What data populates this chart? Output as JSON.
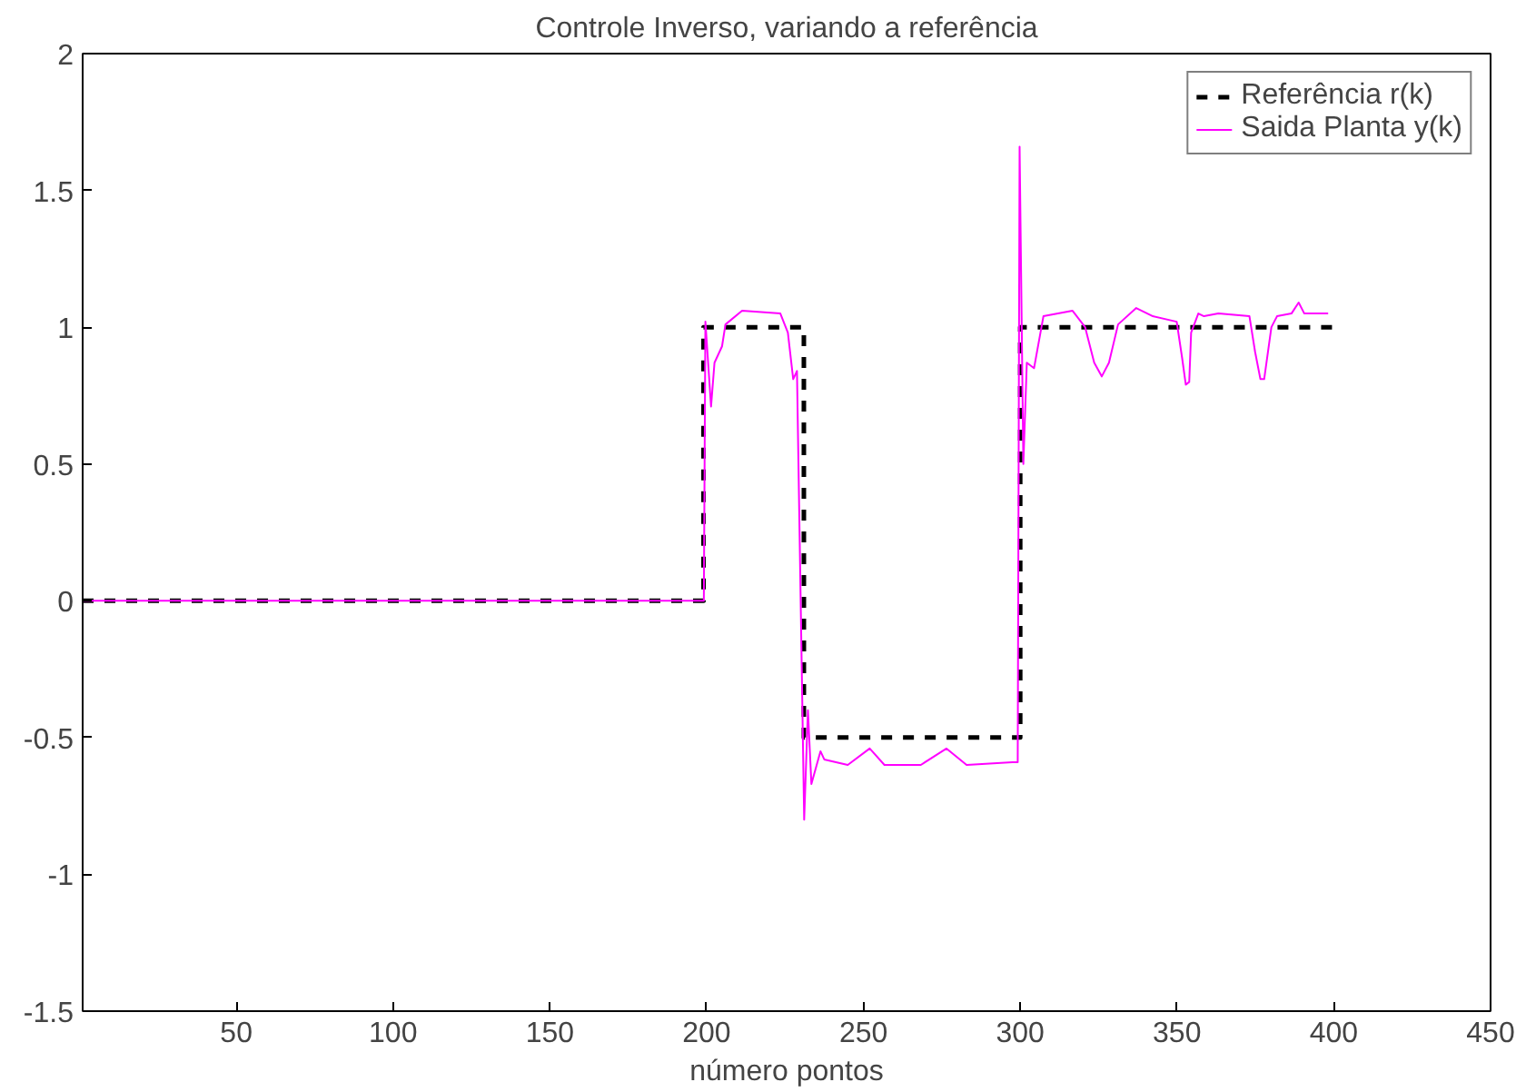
{
  "chart_data": {
    "type": "line",
    "title": "Controle Inverso, variando a referência",
    "xlabel": "número pontos",
    "xlim": [
      1,
      450
    ],
    "ylim": [
      -1.5,
      2
    ],
    "xticks": [
      50,
      100,
      150,
      200,
      250,
      300,
      350,
      400,
      450
    ],
    "yticks": [
      -1.5,
      -1,
      -0.5,
      0,
      0.5,
      1,
      1.5,
      2
    ],
    "grid": false,
    "legend": "top right",
    "series": [
      {
        "name": "Referência r(k)",
        "color": "#000000",
        "line_style": "dashed",
        "x": [
          1,
          199,
          199,
          231,
          231,
          300,
          300,
          400
        ],
        "values": [
          0,
          0,
          1,
          1,
          -0.5,
          -0.5,
          1,
          1
        ]
      },
      {
        "name": "Saida Planta y(k)",
        "color": "#ff00ff",
        "line_style": "solid",
        "x": [
          1,
          199.1,
          199.6,
          201.4,
          202.5,
          204.9,
          206,
          211.3,
          223.5,
          225.9,
          227.6,
          228.8,
          231.1,
          232.3,
          233.4,
          236.3,
          237.5,
          245,
          252,
          256.7,
          264.3,
          268.3,
          276.5,
          282.9,
          297.5,
          299.2,
          299.8,
          301,
          302.1,
          304.4,
          307.4,
          316.7,
          320.7,
          323.6,
          326,
          328.3,
          331.2,
          337,
          342.3,
          349.9,
          351.6,
          352.8,
          353.9,
          354.5,
          356.8,
          358.6,
          363.2,
          373.1,
          374.9,
          376.6,
          377.8,
          380.1,
          381.9,
          386.5,
          388.8,
          390.6,
          398.2
        ],
        "values": [
          0,
          0,
          1.02,
          0.71,
          0.87,
          0.93,
          1.01,
          1.06,
          1.05,
          0.98,
          0.81,
          0.84,
          -0.8,
          -0.4,
          -0.67,
          -0.55,
          -0.58,
          -0.6,
          -0.54,
          -0.6,
          -0.6,
          -0.6,
          -0.54,
          -0.6,
          -0.59,
          -0.59,
          1.66,
          0.5,
          0.87,
          0.85,
          1.04,
          1.06,
          1.0,
          0.87,
          0.82,
          0.87,
          1.01,
          1.07,
          1.04,
          1.02,
          0.89,
          0.79,
          0.8,
          0.98,
          1.05,
          1.04,
          1.05,
          1.04,
          0.91,
          0.81,
          0.81,
          1.0,
          1.04,
          1.05,
          1.09,
          1.05,
          1.05
        ]
      }
    ]
  }
}
